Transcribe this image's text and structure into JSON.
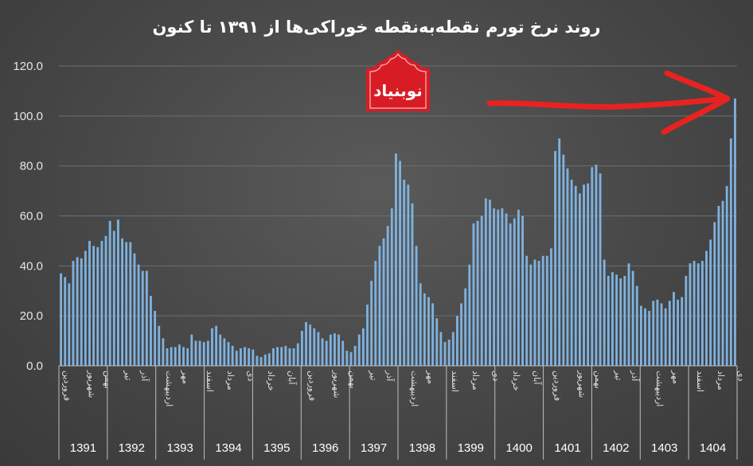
{
  "chart_data": {
    "type": "bar",
    "title": "روند نرخ تورم نقطه‌به‌نقطه خوراکی‌ها از ۱۳۹۱ تا کنون",
    "ylim": [
      0,
      120
    ],
    "yticks": [
      "0.0",
      "20.0",
      "40.0",
      "60.0",
      "80.0",
      "100.0",
      "120.0"
    ],
    "grid": true,
    "bar_color": "#7fb2e0",
    "years": [
      "1391",
      "1392",
      "1393",
      "1394",
      "1395",
      "1396",
      "1397",
      "1398",
      "1399",
      "1400",
      "1401",
      "1402",
      "1403",
      "1404"
    ],
    "month_labels": [
      {
        "index": 0,
        "text": "فروردین"
      },
      {
        "index": 6,
        "text": "شهریور"
      },
      {
        "index": 10,
        "text": "بهمن"
      },
      {
        "index": 15,
        "text": "تیر"
      },
      {
        "index": 19,
        "text": "آذر"
      },
      {
        "index": 25,
        "text": "اردیبهشت"
      },
      {
        "index": 29,
        "text": "مهر"
      },
      {
        "index": 35,
        "text": "اسفند"
      },
      {
        "index": 40,
        "text": "مرداد"
      },
      {
        "index": 45,
        "text": "دی"
      },
      {
        "index": 50,
        "text": "خرداد"
      },
      {
        "index": 55,
        "text": "آبان"
      },
      {
        "index": 60,
        "text": "فروردین"
      },
      {
        "index": 66,
        "text": "شهریور"
      },
      {
        "index": 70,
        "text": "بهمن"
      },
      {
        "index": 75,
        "text": "تیر"
      },
      {
        "index": 79,
        "text": "آذر"
      },
      {
        "index": 85,
        "text": "اردیبهشت"
      },
      {
        "index": 89,
        "text": "مهر"
      },
      {
        "index": 95,
        "text": "اسفند"
      },
      {
        "index": 100,
        "text": "مرداد"
      },
      {
        "index": 105,
        "text": "دی"
      },
      {
        "index": 110,
        "text": "خرداد"
      },
      {
        "index": 115,
        "text": "آبان"
      },
      {
        "index": 120,
        "text": "فروردین"
      },
      {
        "index": 126,
        "text": "شهریور"
      },
      {
        "index": 130,
        "text": "بهمن"
      },
      {
        "index": 135,
        "text": "تیر"
      },
      {
        "index": 139,
        "text": "آذر"
      },
      {
        "index": 145,
        "text": "اردیبهشت"
      },
      {
        "index": 149,
        "text": "مهر"
      },
      {
        "index": 155,
        "text": "اسفند"
      },
      {
        "index": 160,
        "text": "مرداد"
      },
      {
        "index": 165,
        "text": "دی"
      }
    ],
    "values": [
      37,
      35.5,
      33,
      42,
      43.5,
      43,
      46,
      50,
      48,
      47.5,
      50,
      52,
      58,
      54,
      58.5,
      51,
      49.5,
      49.5,
      45,
      40.5,
      38,
      38,
      28,
      22,
      16,
      11,
      7,
      7.5,
      7.5,
      8.5,
      7.5,
      7,
      12.5,
      10,
      10,
      9.5,
      10,
      15,
      16,
      12.5,
      11,
      9.5,
      8,
      6,
      7,
      7.5,
      7,
      6.5,
      4,
      3.5,
      4.5,
      5,
      7,
      7.5,
      7.5,
      8,
      7,
      7,
      9,
      14,
      17.5,
      16.5,
      15,
      13.5,
      11,
      10,
      12.5,
      13,
      12.5,
      10,
      6,
      5.5,
      8,
      12.5,
      15,
      24.5,
      34,
      42,
      48,
      51,
      56,
      63,
      85,
      82,
      74.5,
      72.5,
      65,
      48,
      33,
      29,
      27.5,
      25,
      19,
      13.5,
      9.5,
      10.5,
      13.5,
      20,
      25,
      31,
      40.5,
      57,
      58,
      60,
      67,
      66.5,
      63,
      62.5,
      63,
      61,
      57,
      59,
      62.5,
      60,
      44,
      40.5,
      42.5,
      42,
      44,
      44,
      47,
      86,
      91,
      84.5,
      79,
      74.5,
      72,
      69,
      72.5,
      73,
      79.5,
      80.5,
      77,
      42.5,
      36,
      37.5,
      36.5,
      35,
      36,
      41,
      38,
      32,
      24,
      23,
      22,
      26,
      26.5,
      25,
      23,
      26,
      29.5,
      26.5,
      27.5,
      36,
      41,
      42,
      41,
      42,
      46,
      50.5,
      57.5,
      64,
      66,
      72,
      91,
      107
    ]
  },
  "logo": {
    "text": "نوبنیاد",
    "fill_color": "#d81c25",
    "text_color": "#ffffff"
  },
  "annotation": {
    "type": "arrow",
    "color": "#e8231f"
  }
}
